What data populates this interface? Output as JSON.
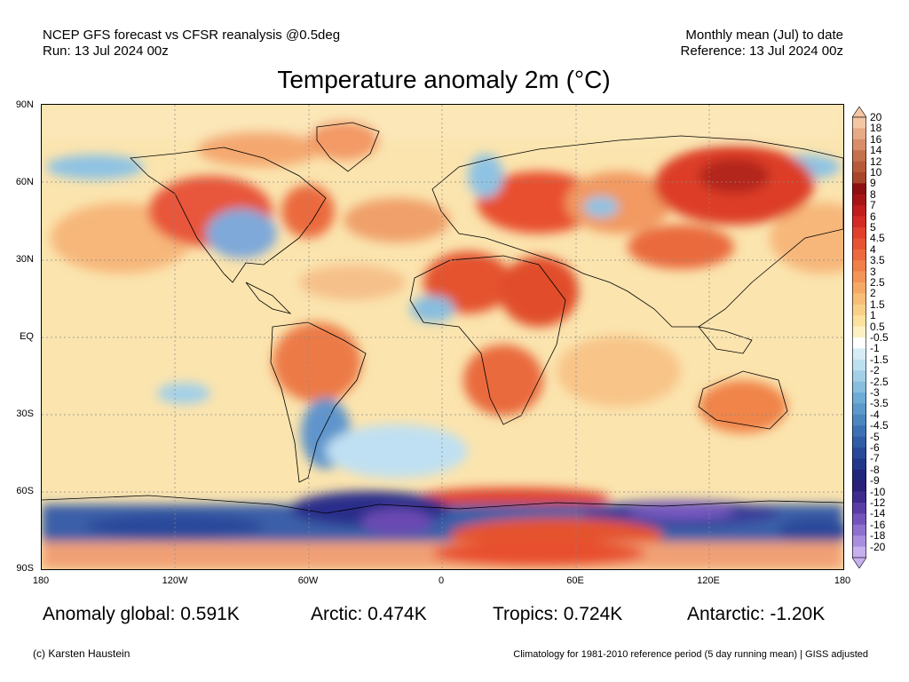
{
  "header": {
    "left_line1": "NCEP GFS forecast vs CFSR reanalysis @0.5deg",
    "left_line2": "Run: 13 Jul 2024 00z",
    "right_line1": "Monthly mean (Jul) to date",
    "right_line2": "Reference: 13 Jul 2024 00z"
  },
  "title": "Temperature anomaly 2m (°C)",
  "axes": {
    "lat_labels": [
      "90N",
      "60N",
      "30N",
      "EQ",
      "30S",
      "60S",
      "90S"
    ],
    "lon_labels": [
      "180",
      "120W",
      "60W",
      "0",
      "60E",
      "120E",
      "180"
    ]
  },
  "colorbar": {
    "labels": [
      "20",
      "18",
      "16",
      "14",
      "12",
      "10",
      "9",
      "8",
      "7",
      "6",
      "5",
      "4.5",
      "4",
      "3.5",
      "3",
      "2.5",
      "2",
      "1.5",
      "1",
      "0.5",
      "-0.5",
      "-1",
      "-1.5",
      "-2",
      "-2.5",
      "-3",
      "-3.5",
      "-4",
      "-4.5",
      "-5",
      "-6",
      "-7",
      "-8",
      "-9",
      "-10",
      "-12",
      "-14",
      "-16",
      "-18",
      "-20"
    ],
    "colors": [
      "#f3c6a4",
      "#e6aa86",
      "#d88d68",
      "#c6714d",
      "#b65a3a",
      "#a8452a",
      "#8e1010",
      "#a81414",
      "#c21c1c",
      "#d42b24",
      "#e0402c",
      "#e65434",
      "#ec6a3e",
      "#f07f48",
      "#f49458",
      "#f6a966",
      "#f8bd76",
      "#fad088",
      "#fce29c",
      "#fdf1c4",
      "#ffffff",
      "#d6ecf7",
      "#bde0f0",
      "#a3d0e8",
      "#88bedf",
      "#6eacd6",
      "#5b99cb",
      "#4b86bf",
      "#3c72b3",
      "#2f5da6",
      "#284a98",
      "#22388a",
      "#1f277c",
      "#2a1f7a",
      "#3f2a8e",
      "#5a3ca6",
      "#7454bc",
      "#8e70cf",
      "#a98ee0",
      "#c6b0ee"
    ],
    "arrow_top_color": "#f3c6a4",
    "arrow_bottom_color": "#c6b0ee"
  },
  "stats": {
    "global": "Anomaly global: 0.591K",
    "arctic": "Arctic: 0.474K",
    "tropics": "Tropics: 0.724K",
    "antarctic": "Antarctic: -1.20K"
  },
  "footer": {
    "credit": "(c) Karsten Haustein",
    "note": "Climatology for 1981-2010 reference period (5 day running mean) | GISS adjusted"
  }
}
